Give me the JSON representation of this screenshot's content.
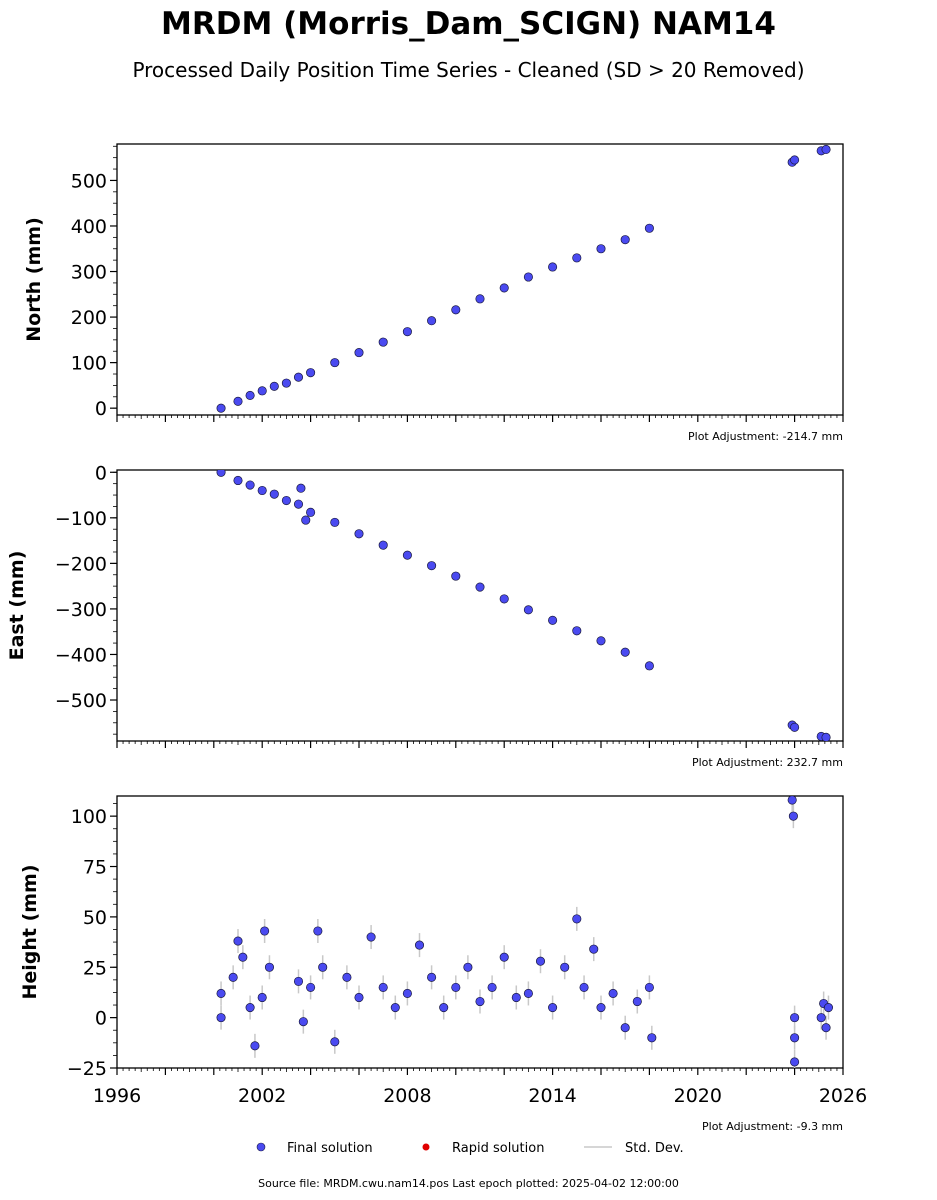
{
  "title": "MRDM (Morris_Dam_SCIGN) NAM14",
  "subtitle": "Processed Daily Position Time Series - Cleaned (SD > 20 Removed)",
  "source_note": "Source file: MRDM.cwu.nam14.pos  Last epoch plotted: 2025-04-02 12:00:00",
  "colors": {
    "final": "#4a4af0",
    "final_edge": "#1a1a40",
    "rapid": "#e00000",
    "stddev": "#c8c8c8"
  },
  "legend": {
    "final": "Final solution",
    "rapid": "Rapid solution",
    "stddev": "Std. Dev."
  },
  "chart_data": [
    {
      "type": "scatter",
      "ylabel": "North (mm)",
      "ylim": [
        -15,
        580
      ],
      "yticks": [
        0,
        100,
        200,
        300,
        400,
        500
      ],
      "xlim": [
        1996,
        2026
      ],
      "adjustment_label": "Plot Adjustment: -214.7 mm",
      "series": [
        {
          "values_description": "",
          "points": [
            [
              2000.3,
              0
            ],
            [
              2001.0,
              15
            ],
            [
              2001.5,
              28
            ],
            [
              2002.0,
              38
            ],
            [
              2002.5,
              48
            ],
            [
              2003.0,
              55
            ],
            [
              2003.5,
              68
            ],
            [
              2004.0,
              78
            ],
            [
              2005.0,
              100
            ],
            [
              2006.0,
              122
            ],
            [
              2007.0,
              145
            ],
            [
              2008.0,
              168
            ],
            [
              2009.0,
              192
            ],
            [
              2010.0,
              216
            ],
            [
              2011.0,
              240
            ],
            [
              2012.0,
              264
            ],
            [
              2013.0,
              288
            ],
            [
              2014.0,
              310
            ],
            [
              2015.0,
              330
            ],
            [
              2016.0,
              350
            ],
            [
              2017.0,
              370
            ],
            [
              2018.0,
              395
            ],
            [
              2023.9,
              540
            ],
            [
              2024.0,
              545
            ],
            [
              2025.1,
              565
            ],
            [
              2025.3,
              568
            ]
          ]
        }
      ]
    },
    {
      "type": "scatter",
      "ylabel": "East (mm)",
      "ylim": [
        -590,
        5
      ],
      "yticks": [
        0,
        -100,
        -200,
        -300,
        -400,
        -500
      ],
      "xlim": [
        1996,
        2026
      ],
      "adjustment_label": "Plot Adjustment: 232.7 mm",
      "series": [
        {
          "points": [
            [
              2000.3,
              0
            ],
            [
              2001.0,
              -18
            ],
            [
              2001.5,
              -28
            ],
            [
              2002.0,
              -40
            ],
            [
              2002.5,
              -48
            ],
            [
              2003.0,
              -62
            ],
            [
              2003.5,
              -70
            ],
            [
              2004.0,
              -88
            ],
            [
              2005.0,
              -110
            ],
            [
              2006.0,
              -135
            ],
            [
              2007.0,
              -160
            ],
            [
              2008.0,
              -182
            ],
            [
              2009.0,
              -205
            ],
            [
              2010.0,
              -228
            ],
            [
              2011.0,
              -252
            ],
            [
              2012.0,
              -278
            ],
            [
              2013.0,
              -302
            ],
            [
              2014.0,
              -325
            ],
            [
              2015.0,
              -348
            ],
            [
              2016.0,
              -370
            ],
            [
              2017.0,
              -395
            ],
            [
              2018.0,
              -425
            ],
            [
              2023.9,
              -555
            ],
            [
              2024.0,
              -560
            ],
            [
              2025.1,
              -580
            ],
            [
              2025.3,
              -582
            ],
            [
              2003.6,
              -35
            ],
            [
              2003.8,
              -105
            ]
          ]
        }
      ]
    },
    {
      "type": "scatter",
      "ylabel": "Height (mm)",
      "ylim": [
        -25,
        110
      ],
      "yticks": [
        -25,
        0,
        25,
        50,
        75,
        100
      ],
      "xlim": [
        1996,
        2026
      ],
      "xticks": [
        1996,
        2002,
        2008,
        2014,
        2020,
        2026
      ],
      "adjustment_label": "Plot Adjustment: -9.3 mm",
      "series": [
        {
          "points": [
            [
              2000.3,
              0
            ],
            [
              2000.3,
              12
            ],
            [
              2000.8,
              20
            ],
            [
              2001.0,
              38
            ],
            [
              2001.2,
              30
            ],
            [
              2001.5,
              5
            ],
            [
              2001.7,
              -14
            ],
            [
              2002.0,
              10
            ],
            [
              2002.1,
              43
            ],
            [
              2002.3,
              25
            ],
            [
              2003.5,
              18
            ],
            [
              2003.7,
              -2
            ],
            [
              2004.0,
              15
            ],
            [
              2004.3,
              43
            ],
            [
              2004.5,
              25
            ],
            [
              2005.0,
              -12
            ],
            [
              2005.5,
              20
            ],
            [
              2006.0,
              10
            ],
            [
              2006.5,
              40
            ],
            [
              2007.0,
              15
            ],
            [
              2007.5,
              5
            ],
            [
              2008.0,
              12
            ],
            [
              2008.5,
              36
            ],
            [
              2009.0,
              20
            ],
            [
              2009.5,
              5
            ],
            [
              2010.0,
              15
            ],
            [
              2010.5,
              25
            ],
            [
              2011.0,
              8
            ],
            [
              2011.5,
              15
            ],
            [
              2012.0,
              30
            ],
            [
              2012.5,
              10
            ],
            [
              2013.0,
              12
            ],
            [
              2013.5,
              28
            ],
            [
              2014.0,
              5
            ],
            [
              2014.5,
              25
            ],
            [
              2015.0,
              49
            ],
            [
              2015.3,
              15
            ],
            [
              2015.7,
              34
            ],
            [
              2016.0,
              5
            ],
            [
              2016.5,
              12
            ],
            [
              2017.0,
              -5
            ],
            [
              2017.5,
              8
            ],
            [
              2018.0,
              15
            ],
            [
              2018.1,
              -10
            ],
            [
              2023.9,
              108
            ],
            [
              2023.95,
              100
            ],
            [
              2024.0,
              -22
            ],
            [
              2024.0,
              -10
            ],
            [
              2024.0,
              0
            ],
            [
              2025.1,
              0
            ],
            [
              2025.2,
              7
            ],
            [
              2025.3,
              -5
            ],
            [
              2025.4,
              5
            ]
          ]
        }
      ]
    }
  ]
}
